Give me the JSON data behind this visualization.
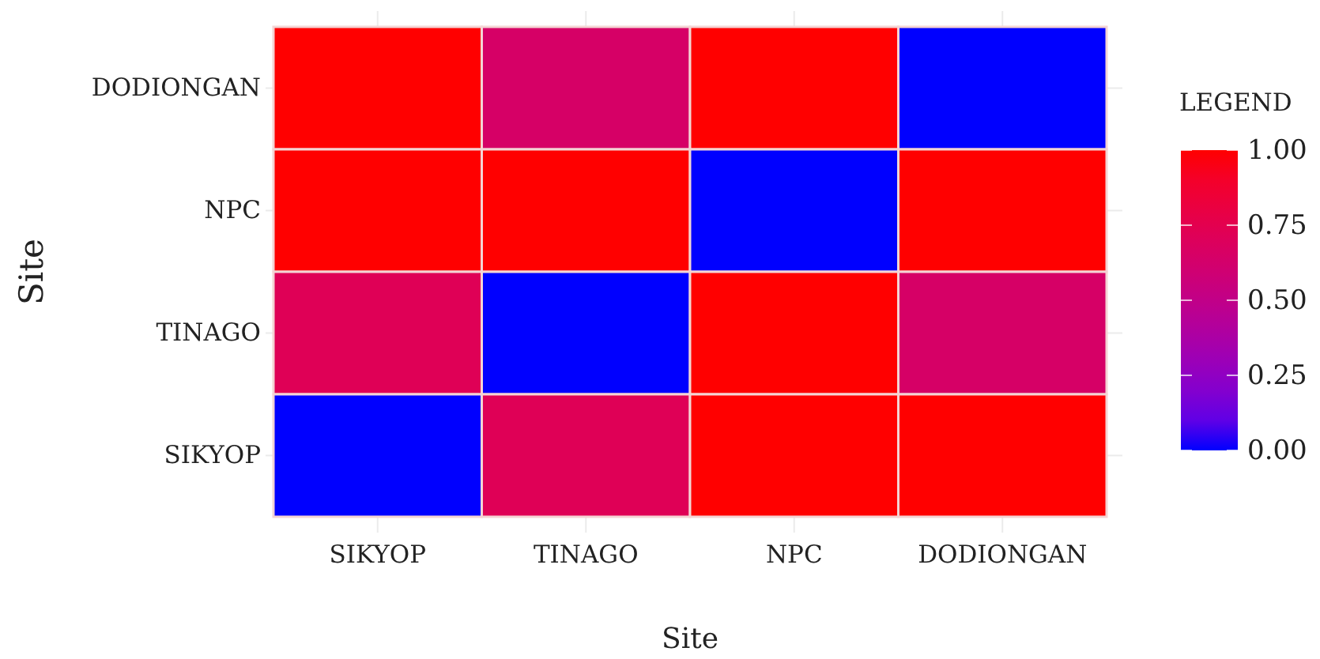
{
  "chart_data": {
    "type": "heatmap",
    "xlabel": "Site",
    "ylabel": "Site",
    "legend_title": "LEGEND",
    "categories": [
      "SIKYOP",
      "TINAGO",
      "NPC",
      "DODIONGAN"
    ],
    "y_categories": [
      "DODIONGAN",
      "NPC",
      "TINAGO",
      "SIKYOP"
    ],
    "cells": [
      [
        1,
        0.65,
        1,
        0
      ],
      [
        1,
        1,
        0,
        1
      ],
      [
        0.72,
        0,
        1,
        0.65
      ],
      [
        0,
        0.72,
        1,
        1
      ]
    ],
    "clim": [
      0,
      1
    ],
    "cticks": [
      {
        "value": 0,
        "label": "0.00"
      },
      {
        "value": 0.25,
        "label": "0.25"
      },
      {
        "value": 0.5,
        "label": "0.50"
      },
      {
        "value": 0.75,
        "label": "0.75"
      },
      {
        "value": 1,
        "label": "1.00"
      }
    ],
    "grid": true
  }
}
